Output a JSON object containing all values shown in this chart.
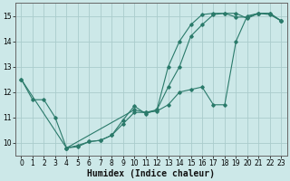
{
  "xlabel": "Humidex (Indice chaleur)",
  "bg_color": "#cce8e8",
  "grid_color": "#aacccc",
  "line_color": "#2a7a6a",
  "xlim": [
    -0.5,
    23.5
  ],
  "ylim": [
    9.5,
    15.5
  ],
  "xticks": [
    0,
    1,
    2,
    3,
    4,
    5,
    6,
    7,
    8,
    9,
    10,
    11,
    12,
    13,
    14,
    15,
    16,
    17,
    18,
    19,
    20,
    21,
    22,
    23
  ],
  "yticks": [
    10,
    11,
    12,
    13,
    14,
    15
  ],
  "curve1_x": [
    0,
    1,
    2,
    3,
    4,
    5,
    6,
    7,
    8,
    9,
    10,
    11,
    12,
    13,
    14,
    15,
    16,
    17,
    18,
    19,
    20,
    21,
    22,
    23
  ],
  "curve1_y": [
    12.5,
    11.7,
    11.7,
    11.0,
    9.8,
    9.85,
    10.05,
    10.1,
    10.3,
    10.75,
    11.2,
    11.2,
    11.25,
    11.5,
    12.0,
    12.1,
    12.2,
    11.5,
    11.5,
    14.0,
    15.0,
    15.1,
    15.05,
    14.8
  ],
  "curve2_x": [
    4,
    5,
    6,
    7,
    8,
    9,
    10,
    11,
    12,
    13,
    14,
    15,
    16,
    17,
    18,
    19,
    20,
    21,
    22,
    23
  ],
  "curve2_y": [
    9.8,
    9.9,
    10.05,
    10.1,
    10.3,
    10.9,
    11.45,
    11.15,
    11.3,
    12.2,
    13.0,
    14.2,
    14.65,
    15.05,
    15.1,
    15.1,
    14.9,
    15.1,
    15.1,
    14.8
  ],
  "curve3_x": [
    0,
    4,
    10,
    11,
    12,
    13,
    14,
    15,
    16,
    17,
    18,
    19,
    20,
    21,
    22,
    23
  ],
  "curve3_y": [
    12.5,
    9.8,
    11.3,
    11.2,
    11.3,
    13.0,
    14.0,
    14.65,
    15.05,
    15.1,
    15.1,
    14.95,
    14.95,
    15.1,
    15.1,
    14.8
  ],
  "xlabel_fontsize": 7,
  "tick_fontsize": 5.5,
  "lw": 0.8,
  "ms": 1.8
}
